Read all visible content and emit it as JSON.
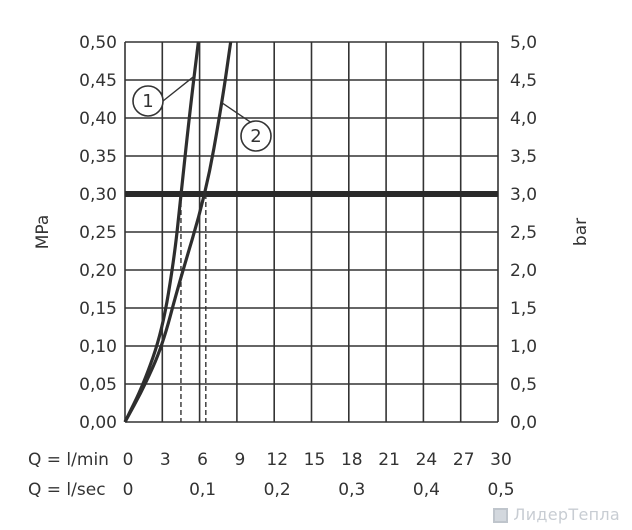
{
  "chart_data": {
    "type": "line",
    "title": "",
    "y_left_label": "MPa",
    "y_right_label": "bar",
    "y_left_ticks": [
      "0,00",
      "0,05",
      "0,10",
      "0,15",
      "0,20",
      "0,25",
      "0,30",
      "0,35",
      "0,40",
      "0,45",
      "0,50"
    ],
    "y_right_ticks": [
      "0,0",
      "0,5",
      "1,0",
      "1,5",
      "2,0",
      "2,5",
      "3,0",
      "3,5",
      "4,0",
      "4,5",
      "5,0"
    ],
    "x_ticks_lmin": [
      "0",
      "3",
      "6",
      "9",
      "12",
      "15",
      "18",
      "21",
      "24",
      "27",
      "30"
    ],
    "x_ticks_lsec": [
      "0",
      "0,1",
      "0,2",
      "0,3",
      "0,4",
      "0,5"
    ],
    "x_label_lmin": "Q = l/min",
    "x_label_lsec": "Q = l/sec",
    "xlim": [
      0,
      30
    ],
    "ylim": [
      0,
      0.5
    ],
    "reference_pressure": 0.3,
    "grid": true,
    "series": [
      {
        "name": "1",
        "x": [
          0,
          1.5,
          3.0,
          4.0,
          4.5,
          5.3,
          5.9
        ],
        "y": [
          0,
          0.05,
          0.12,
          0.22,
          0.3,
          0.42,
          0.5
        ]
      },
      {
        "name": "2",
        "x": [
          0,
          1.5,
          3.0,
          4.3,
          6.5,
          7.8,
          8.5
        ],
        "y": [
          0,
          0.045,
          0.1,
          0.18,
          0.3,
          0.42,
          0.5
        ]
      }
    ],
    "markers_at_reference": [
      {
        "series": "1",
        "x": 4.5
      },
      {
        "series": "2",
        "x": 6.5
      }
    ]
  },
  "watermark": {
    "text": "ЛидерТепла"
  }
}
